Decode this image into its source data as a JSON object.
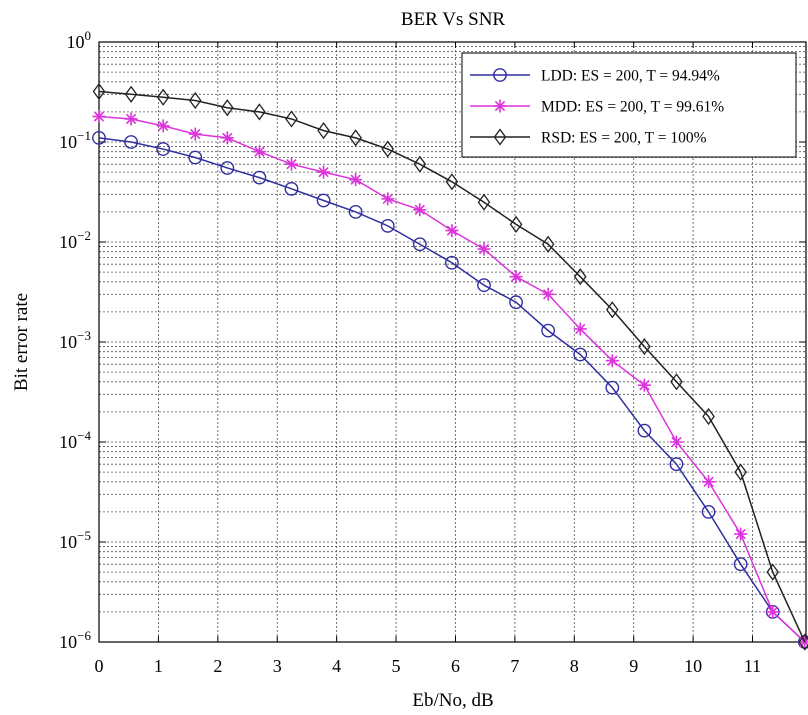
{
  "chart_data": {
    "type": "line",
    "title": "BER Vs SNR",
    "xlabel": "Eb/No, dB",
    "ylabel": "Bit error rate",
    "xlim": [
      0,
      11.9
    ],
    "ylim": [
      1e-06,
      1
    ],
    "yscale": "log",
    "grid": true,
    "legend_position": "top-right",
    "x_ticks": [
      "0",
      "1",
      "2",
      "3",
      "4",
      "5",
      "6",
      "7",
      "8",
      "9",
      "10",
      "11"
    ],
    "y_ticks": [
      {
        "base": "10",
        "exp": "0"
      },
      {
        "base": "10",
        "exp": "−1"
      },
      {
        "base": "10",
        "exp": "−2"
      },
      {
        "base": "10",
        "exp": "−3"
      },
      {
        "base": "10",
        "exp": "−4"
      },
      {
        "base": "10",
        "exp": "−5"
      },
      {
        "base": "10",
        "exp": "−6"
      }
    ],
    "x": [
      0,
      0.54,
      1.08,
      1.62,
      2.16,
      2.7,
      3.24,
      3.78,
      4.32,
      4.86,
      5.4,
      5.94,
      6.48,
      7.02,
      7.56,
      8.1,
      8.64,
      9.18,
      9.72,
      10.26,
      10.8,
      11.34,
      11.88
    ],
    "series": [
      {
        "name": "LDD: ES = 200, T = 94.94%",
        "color": "#2f2fa0",
        "marker": "circle",
        "values": [
          0.11,
          0.1,
          0.085,
          0.07,
          0.055,
          0.044,
          0.034,
          0.026,
          0.02,
          0.0145,
          0.0095,
          0.0062,
          0.0037,
          0.0025,
          0.0013,
          0.00075,
          0.00035,
          0.00013,
          6e-05,
          2e-05,
          6e-06,
          2e-06,
          1e-06
        ]
      },
      {
        "name": "MDD: ES = 200, T = 99.61%",
        "color": "#dd33dd",
        "marker": "star",
        "values": [
          0.18,
          0.17,
          0.145,
          0.12,
          0.11,
          0.08,
          0.06,
          0.05,
          0.042,
          0.027,
          0.021,
          0.013,
          0.0085,
          0.0045,
          0.003,
          0.00135,
          0.00065,
          0.00037,
          0.0001,
          4e-05,
          1.2e-05,
          2e-06,
          1e-06
        ]
      },
      {
        "name": "RSD: ES = 200, T = 100%",
        "color": "#222222",
        "marker": "diamond",
        "values": [
          0.32,
          0.3,
          0.28,
          0.26,
          0.22,
          0.2,
          0.17,
          0.13,
          0.11,
          0.085,
          0.06,
          0.04,
          0.025,
          0.015,
          0.0095,
          0.0045,
          0.0021,
          0.0009,
          0.0004,
          0.00018,
          5e-05,
          5e-06,
          1e-06
        ]
      }
    ]
  }
}
